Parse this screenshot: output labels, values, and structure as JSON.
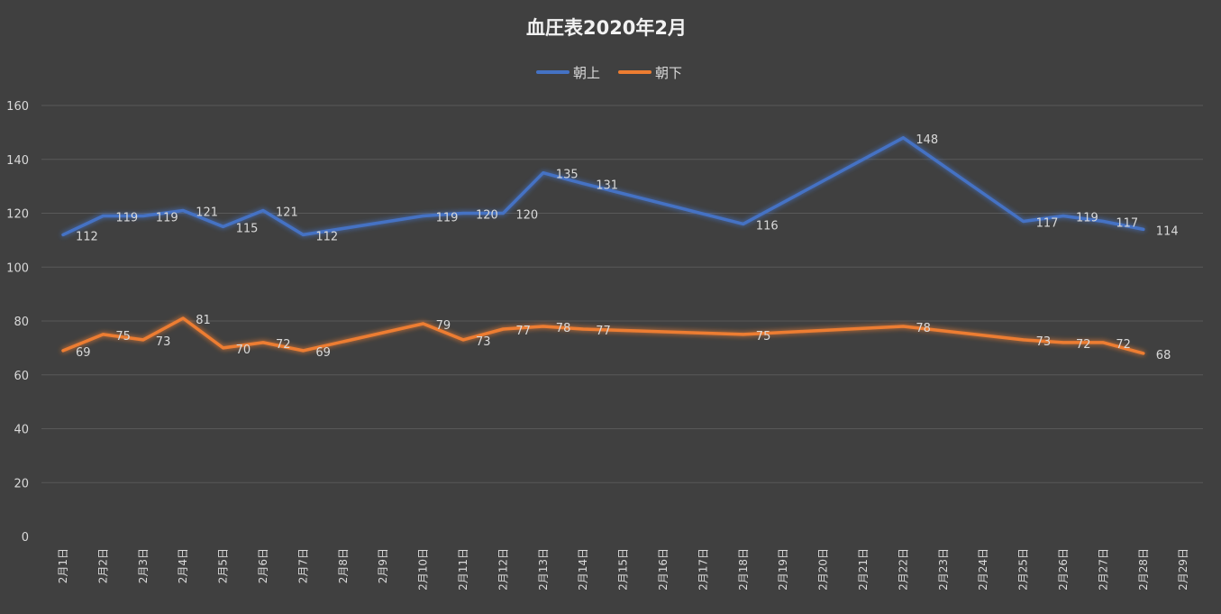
{
  "chart_data": {
    "type": "line",
    "title": "血圧表2020年2月",
    "xlabel": "",
    "ylabel": "",
    "ylim": [
      0,
      160
    ],
    "yticks": [
      0,
      20,
      40,
      60,
      80,
      100,
      120,
      140,
      160
    ],
    "grid": true,
    "legend_position": "top",
    "categories": [
      "2月1日",
      "2月2日",
      "2月3日",
      "2月4日",
      "2月5日",
      "2月6日",
      "2月7日",
      "2月8日",
      "2月9日",
      "2月10日",
      "2月11日",
      "2月12日",
      "2月13日",
      "2月14日",
      "2月15日",
      "2月16日",
      "2月17日",
      "2月18日",
      "2月19日",
      "2月20日",
      "2月21日",
      "2月22日",
      "2月23日",
      "2月24日",
      "2月25日",
      "2月26日",
      "2月27日",
      "2月28日",
      "2月29日"
    ],
    "series": [
      {
        "name": "朝上",
        "color": "#4472C4",
        "values": [
          112,
          119,
          119,
          121,
          115,
          121,
          112,
          null,
          null,
          119,
          120,
          120,
          135,
          131,
          null,
          null,
          null,
          116,
          null,
          null,
          null,
          148,
          null,
          null,
          117,
          119,
          117,
          114,
          null
        ]
      },
      {
        "name": "朝下",
        "color": "#ED7D31",
        "values": [
          69,
          75,
          73,
          81,
          70,
          72,
          69,
          null,
          null,
          79,
          73,
          77,
          78,
          77,
          null,
          null,
          null,
          75,
          null,
          null,
          null,
          78,
          null,
          null,
          73,
          72,
          72,
          68,
          null
        ]
      }
    ]
  },
  "style": {
    "background": "#404040",
    "gridline_color": "#595959",
    "text_color": "#D9D9D9",
    "title_color": "#F2F2F2"
  }
}
